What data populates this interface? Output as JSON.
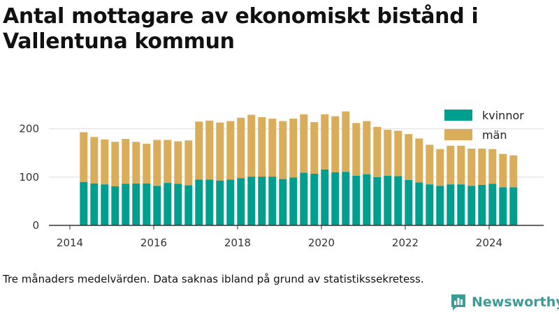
{
  "title": "Antal mottagare av ekonomiskt bistånd i Vallentuna kommun",
  "footnote": "Tre månaders medelvärden. Data saknas ibland på grund av statistikssekretess.",
  "brand": "Newsworthy",
  "colors": {
    "kvinnor": "#009e8f",
    "man": "#d9ad5a",
    "brand": "#3c9c95",
    "grid": "#dddddd",
    "axis": "#333333"
  },
  "legend": [
    {
      "label": "kvinnor",
      "color": "#009e8f"
    },
    {
      "label": "män",
      "color": "#d9ad5a"
    }
  ],
  "chart_data": {
    "type": "bar",
    "stacked": true,
    "x_tick_labels": [
      "2014",
      "2016",
      "2018",
      "2020",
      "2022",
      "2024"
    ],
    "y_tick_labels": [
      "0",
      "100",
      "200"
    ],
    "ylim": [
      0,
      250
    ],
    "xlim": [
      2013.5,
      2025.3
    ],
    "grid": true,
    "legend_position": "top-right",
    "x": [
      2014.33,
      2014.58,
      2014.83,
      2015.08,
      2015.33,
      2015.58,
      2015.83,
      2016.08,
      2016.33,
      2016.58,
      2016.83,
      2017.08,
      2017.33,
      2017.58,
      2017.83,
      2018.08,
      2018.33,
      2018.58,
      2018.83,
      2019.08,
      2019.33,
      2019.58,
      2019.83,
      2020.08,
      2020.33,
      2020.58,
      2020.83,
      2021.08,
      2021.33,
      2021.58,
      2021.83,
      2022.08,
      2022.33,
      2022.58,
      2022.83,
      2023.08,
      2023.33,
      2023.58,
      2023.83,
      2024.08,
      2024.33,
      2024.58
    ],
    "series": [
      {
        "name": "kvinnor",
        "values": [
          90,
          87,
          85,
          81,
          86,
          87,
          87,
          82,
          88,
          86,
          83,
          95,
          95,
          93,
          95,
          98,
          101,
          101,
          101,
          96,
          99,
          109,
          107,
          116,
          110,
          111,
          103,
          106,
          100,
          103,
          102,
          94,
          89,
          85,
          82,
          85,
          85,
          82,
          84,
          86,
          79,
          79
        ]
      },
      {
        "name": "män",
        "values": [
          103,
          96,
          93,
          92,
          93,
          86,
          82,
          95,
          89,
          88,
          93,
          120,
          122,
          120,
          121,
          125,
          128,
          123,
          120,
          120,
          122,
          121,
          107,
          114,
          116,
          125,
          109,
          110,
          104,
          95,
          94,
          95,
          91,
          82,
          76,
          80,
          80,
          77,
          75,
          72,
          69,
          66
        ]
      }
    ]
  }
}
